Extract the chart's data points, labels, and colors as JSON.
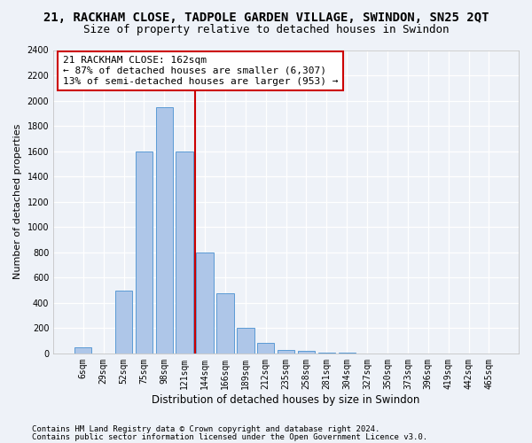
{
  "title": "21, RACKHAM CLOSE, TADPOLE GARDEN VILLAGE, SWINDON, SN25 2QT",
  "subtitle": "Size of property relative to detached houses in Swindon",
  "xlabel": "Distribution of detached houses by size in Swindon",
  "ylabel": "Number of detached properties",
  "categories": [
    "6sqm",
    "29sqm",
    "52sqm",
    "75sqm",
    "98sqm",
    "121sqm",
    "144sqm",
    "166sqm",
    "189sqm",
    "212sqm",
    "235sqm",
    "258sqm",
    "281sqm",
    "304sqm",
    "327sqm",
    "350sqm",
    "373sqm",
    "396sqm",
    "419sqm",
    "442sqm",
    "465sqm"
  ],
  "bar_values": [
    50,
    0,
    500,
    1600,
    1950,
    1600,
    800,
    475,
    200,
    80,
    30,
    20,
    5,
    5,
    0,
    0,
    0,
    0,
    0,
    0,
    0
  ],
  "bar_color": "#aec6e8",
  "bar_edgecolor": "#5b9bd5",
  "vertical_line_color": "#cc0000",
  "annotation_line1": "21 RACKHAM CLOSE: 162sqm",
  "annotation_line2": "← 87% of detached houses are smaller (6,307)",
  "annotation_line3": "13% of semi-detached houses are larger (953) →",
  "annotation_box_edgecolor": "#cc0000",
  "annotation_box_facecolor": "white",
  "ylim": [
    0,
    2400
  ],
  "yticks": [
    0,
    200,
    400,
    600,
    800,
    1000,
    1200,
    1400,
    1600,
    1800,
    2000,
    2200,
    2400
  ],
  "footer_line1": "Contains HM Land Registry data © Crown copyright and database right 2024.",
  "footer_line2": "Contains public sector information licensed under the Open Government Licence v3.0.",
  "background_color": "#eef2f8",
  "plot_bg_color": "#eef2f8",
  "grid_color": "#ffffff",
  "title_fontsize": 10,
  "subtitle_fontsize": 9,
  "xlabel_fontsize": 8.5,
  "ylabel_fontsize": 8,
  "tick_fontsize": 7,
  "annotation_fontsize": 8,
  "footer_fontsize": 6.5,
  "vline_index": 6
}
